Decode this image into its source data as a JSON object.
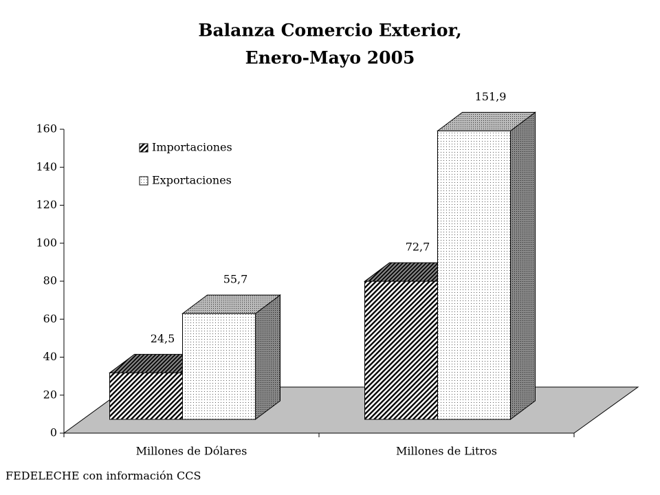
{
  "chart_data": {
    "type": "bar3d",
    "title": [
      "Balanza Comercio Exterior,",
      "Enero-Mayo 2005"
    ],
    "categories": [
      "Millones de Dólares",
      "Millones de Litros"
    ],
    "series": [
      {
        "name": "Importaciones",
        "values": [
          24.5,
          72.7
        ],
        "value_labels": [
          "24,5",
          "72,7"
        ]
      },
      {
        "name": "Exportaciones",
        "values": [
          55.7,
          151.9
        ],
        "value_labels": [
          "55,7",
          "151,9"
        ]
      }
    ],
    "ylim": [
      0,
      160
    ],
    "yticks": [
      0,
      20,
      40,
      60,
      80,
      100,
      120,
      140,
      160
    ],
    "source": "FEDELECHE con información CCS"
  }
}
